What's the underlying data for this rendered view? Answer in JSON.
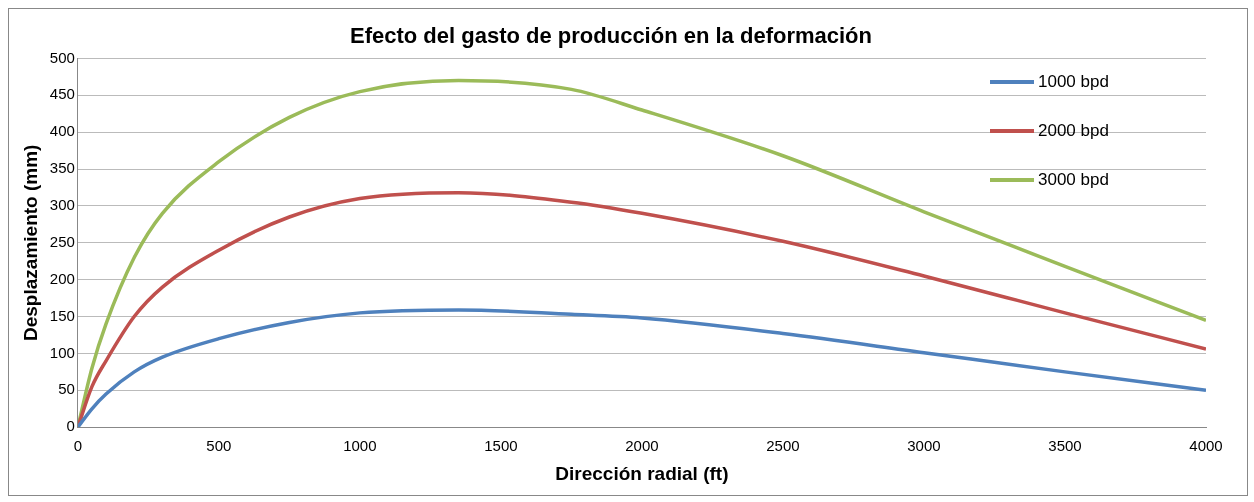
{
  "chart_data": {
    "type": "line",
    "title": "Efecto del gasto de producción en la deformación",
    "xlabel": "Dirección radial (ft)",
    "ylabel": "Desplazamiento (mm)",
    "x": [
      0,
      50,
      100,
      200,
      300,
      500,
      750,
      1000,
      1350,
      1750,
      2000,
      2500,
      3000,
      3500,
      4000
    ],
    "series": [
      {
        "name": "1000 bpd",
        "color": "#4f81bd",
        "values": [
          0,
          25,
          45,
          75,
          95,
          120,
          142,
          155,
          159,
          153,
          148,
          127,
          101,
          75,
          50
        ]
      },
      {
        "name": "2000 bpd",
        "color": "#c0504d",
        "values": [
          0,
          55,
          90,
          150,
          190,
          240,
          285,
          310,
          318,
          305,
          290,
          252,
          205,
          155,
          106
        ]
      },
      {
        "name": "3000 bpd",
        "color": "#9bbb59",
        "values": [
          0,
          80,
          140,
          230,
          290,
          360,
          420,
          455,
          470,
          458,
          430,
          368,
          292,
          218,
          145
        ]
      }
    ],
    "xlim": [
      0,
      4000
    ],
    "xticks": [
      0,
      500,
      1000,
      1500,
      2000,
      2500,
      3000,
      3500,
      4000
    ],
    "ylim": [
      0,
      500
    ],
    "yticks": [
      0,
      50,
      100,
      150,
      200,
      250,
      300,
      350,
      400,
      450,
      500
    ],
    "grid": "y",
    "legend": "top right",
    "marker": "none",
    "line_style": "solid"
  }
}
